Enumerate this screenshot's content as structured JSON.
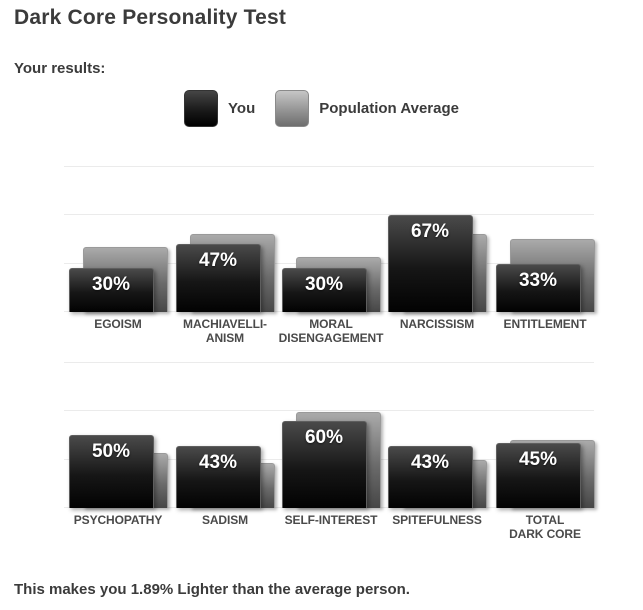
{
  "page": {
    "title": "Dark Core Personality Test",
    "subtitle": "Your results:",
    "footer": "This makes you 1.89% Lighter than the average person."
  },
  "legend": {
    "you_label": "You",
    "average_label": "Population Average"
  },
  "colors": {
    "you_bar": "#111111",
    "average_bar": "#8a8a8a",
    "heading_text": "#3b3b3b",
    "axis_label_text": "#4a4a4a",
    "gridline": "#ebebeb",
    "value_label_text": "#ffffff"
  },
  "chart_data": [
    {
      "type": "bar",
      "title": "",
      "xlabel": "",
      "ylabel": "",
      "ylim": [
        0,
        100
      ],
      "grid": true,
      "gridlines_pct": [
        0,
        33.3,
        66.7,
        100
      ],
      "legend_position": "top-center",
      "categories": [
        "EGOISM",
        "MACHIAVELLIANISM",
        "MORAL DISENGAGEMENT",
        "NARCISSISM",
        "ENTITLEMENT"
      ],
      "category_lines": [
        [
          "EGOISM"
        ],
        [
          "MACHIAVELLI-",
          "ANISM"
        ],
        [
          "MORAL",
          "DISENGAGEMENT"
        ],
        [
          "NARCISSISM"
        ],
        [
          "ENTITLEMENT"
        ]
      ],
      "series": [
        {
          "name": "You",
          "values": [
            30,
            47,
            30,
            67,
            33
          ],
          "labels": [
            "30%",
            "47%",
            "30%",
            "67%",
            "33%"
          ]
        },
        {
          "name": "Population Average",
          "values": [
            45,
            54,
            38,
            54,
            50
          ]
        }
      ]
    },
    {
      "type": "bar",
      "title": "",
      "xlabel": "",
      "ylabel": "",
      "ylim": [
        0,
        100
      ],
      "grid": true,
      "gridlines_pct": [
        0,
        33.3,
        66.7,
        100
      ],
      "legend_position": "top-center",
      "categories": [
        "PSYCHOPATHY",
        "SADISM",
        "SELF-INTEREST",
        "SPITEFULNESS",
        "TOTAL DARK CORE"
      ],
      "category_lines": [
        [
          "PSYCHOPATHY"
        ],
        [
          "SADISM"
        ],
        [
          "SELF-INTEREST"
        ],
        [
          "SPITEFULNESS"
        ],
        [
          "TOTAL",
          "DARK CORE"
        ]
      ],
      "series": [
        {
          "name": "You",
          "values": [
            50,
            43,
            60,
            43,
            45
          ],
          "labels": [
            "50%",
            "43%",
            "60%",
            "43%",
            "45%"
          ]
        },
        {
          "name": "Population Average",
          "values": [
            38,
            31,
            66,
            33,
            47
          ]
        }
      ]
    }
  ]
}
